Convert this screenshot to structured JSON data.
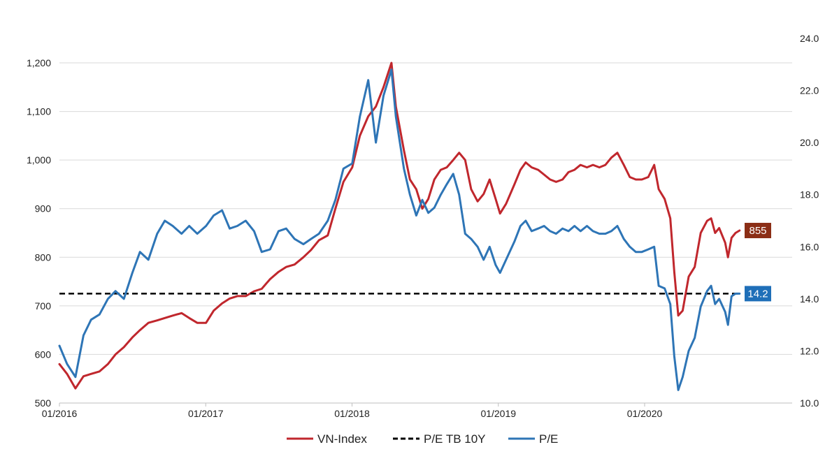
{
  "chart_data": {
    "type": "line",
    "x_ticks": [
      "01/2016",
      "01/2017",
      "01/2018",
      "01/2019",
      "01/2020"
    ],
    "y_left": {
      "lim": [
        500,
        1200
      ],
      "ticks": [
        "500",
        "600",
        "700",
        "800",
        "900",
        "1,000",
        "1,100",
        "1,200"
      ]
    },
    "y_right": {
      "lim": [
        10,
        24
      ],
      "ticks": [
        "10.0",
        "12.0",
        "14.0",
        "16.0",
        "18.0",
        "20.0",
        "22.0",
        "24.0"
      ]
    },
    "grid": "horizontal",
    "legend_position": "bottom",
    "series": [
      {
        "name": "VN-Index",
        "axis": "left",
        "color": "#c0272d",
        "points": [
          [
            "2016-01-01",
            580
          ],
          [
            "2016-01-20",
            560
          ],
          [
            "2016-02-10",
            530
          ],
          [
            "2016-03-01",
            555
          ],
          [
            "2016-03-20",
            560
          ],
          [
            "2016-04-10",
            565
          ],
          [
            "2016-05-01",
            580
          ],
          [
            "2016-05-20",
            600
          ],
          [
            "2016-06-10",
            615
          ],
          [
            "2016-07-01",
            635
          ],
          [
            "2016-07-20",
            650
          ],
          [
            "2016-08-10",
            665
          ],
          [
            "2016-09-01",
            670
          ],
          [
            "2016-09-20",
            675
          ],
          [
            "2016-10-10",
            680
          ],
          [
            "2016-11-01",
            685
          ],
          [
            "2016-11-20",
            675
          ],
          [
            "2016-12-10",
            665
          ],
          [
            "2017-01-01",
            665
          ],
          [
            "2017-01-20",
            690
          ],
          [
            "2017-02-10",
            705
          ],
          [
            "2017-03-01",
            715
          ],
          [
            "2017-03-20",
            720
          ],
          [
            "2017-04-10",
            720
          ],
          [
            "2017-05-01",
            730
          ],
          [
            "2017-05-20",
            735
          ],
          [
            "2017-06-10",
            755
          ],
          [
            "2017-07-01",
            770
          ],
          [
            "2017-07-20",
            780
          ],
          [
            "2017-08-10",
            785
          ],
          [
            "2017-09-01",
            800
          ],
          [
            "2017-09-20",
            815
          ],
          [
            "2017-10-10",
            835
          ],
          [
            "2017-11-01",
            845
          ],
          [
            "2017-11-20",
            900
          ],
          [
            "2017-12-10",
            955
          ],
          [
            "2018-01-01",
            985
          ],
          [
            "2018-01-20",
            1050
          ],
          [
            "2018-02-10",
            1090
          ],
          [
            "2018-03-01",
            1110
          ],
          [
            "2018-03-20",
            1150
          ],
          [
            "2018-04-09",
            1200
          ],
          [
            "2018-04-20",
            1110
          ],
          [
            "2018-05-10",
            1020
          ],
          [
            "2018-05-25",
            960
          ],
          [
            "2018-06-10",
            940
          ],
          [
            "2018-06-25",
            900
          ],
          [
            "2018-07-10",
            920
          ],
          [
            "2018-07-25",
            960
          ],
          [
            "2018-08-10",
            980
          ],
          [
            "2018-08-25",
            985
          ],
          [
            "2018-09-10",
            1000
          ],
          [
            "2018-09-25",
            1015
          ],
          [
            "2018-10-10",
            1000
          ],
          [
            "2018-10-25",
            940
          ],
          [
            "2018-11-10",
            915
          ],
          [
            "2018-11-25",
            930
          ],
          [
            "2018-12-10",
            960
          ],
          [
            "2018-12-25",
            920
          ],
          [
            "2019-01-05",
            890
          ],
          [
            "2019-01-20",
            910
          ],
          [
            "2019-02-10",
            950
          ],
          [
            "2019-02-25",
            980
          ],
          [
            "2019-03-10",
            995
          ],
          [
            "2019-03-25",
            985
          ],
          [
            "2019-04-10",
            980
          ],
          [
            "2019-04-25",
            970
          ],
          [
            "2019-05-10",
            960
          ],
          [
            "2019-05-25",
            955
          ],
          [
            "2019-06-10",
            960
          ],
          [
            "2019-06-25",
            975
          ],
          [
            "2019-07-10",
            980
          ],
          [
            "2019-07-25",
            990
          ],
          [
            "2019-08-10",
            985
          ],
          [
            "2019-08-25",
            990
          ],
          [
            "2019-09-10",
            985
          ],
          [
            "2019-09-25",
            990
          ],
          [
            "2019-10-10",
            1005
          ],
          [
            "2019-10-25",
            1015
          ],
          [
            "2019-11-10",
            990
          ],
          [
            "2019-11-25",
            965
          ],
          [
            "2019-12-10",
            960
          ],
          [
            "2019-12-25",
            960
          ],
          [
            "2020-01-10",
            965
          ],
          [
            "2020-01-25",
            990
          ],
          [
            "2020-02-05",
            940
          ],
          [
            "2020-02-20",
            920
          ],
          [
            "2020-03-05",
            880
          ],
          [
            "2020-03-15",
            770
          ],
          [
            "2020-03-25",
            680
          ],
          [
            "2020-04-05",
            690
          ],
          [
            "2020-04-20",
            760
          ],
          [
            "2020-05-05",
            780
          ],
          [
            "2020-05-20",
            850
          ],
          [
            "2020-06-05",
            875
          ],
          [
            "2020-06-15",
            880
          ],
          [
            "2020-06-25",
            850
          ],
          [
            "2020-07-05",
            860
          ],
          [
            "2020-07-20",
            830
          ],
          [
            "2020-07-27",
            800
          ],
          [
            "2020-08-05",
            840
          ],
          [
            "2020-08-15",
            850
          ],
          [
            "2020-08-25",
            855
          ]
        ]
      },
      {
        "name": "P/E TB 10Y",
        "axis": "right",
        "color": "#000000",
        "dashed": true,
        "value": 14.2
      },
      {
        "name": "P/E",
        "axis": "right",
        "color": "#2e75b6",
        "points": [
          [
            "2016-01-01",
            12.2
          ],
          [
            "2016-01-20",
            11.5
          ],
          [
            "2016-02-10",
            11.0
          ],
          [
            "2016-03-01",
            12.6
          ],
          [
            "2016-03-20",
            13.2
          ],
          [
            "2016-04-10",
            13.4
          ],
          [
            "2016-05-01",
            14.0
          ],
          [
            "2016-05-20",
            14.3
          ],
          [
            "2016-06-10",
            14.0
          ],
          [
            "2016-07-01",
            15.0
          ],
          [
            "2016-07-20",
            15.8
          ],
          [
            "2016-08-10",
            15.5
          ],
          [
            "2016-09-01",
            16.5
          ],
          [
            "2016-09-20",
            17.0
          ],
          [
            "2016-10-10",
            16.8
          ],
          [
            "2016-11-01",
            16.5
          ],
          [
            "2016-11-20",
            16.8
          ],
          [
            "2016-12-10",
            16.5
          ],
          [
            "2017-01-01",
            16.8
          ],
          [
            "2017-01-20",
            17.2
          ],
          [
            "2017-02-10",
            17.4
          ],
          [
            "2017-03-01",
            16.7
          ],
          [
            "2017-03-20",
            16.8
          ],
          [
            "2017-04-10",
            17.0
          ],
          [
            "2017-05-01",
            16.6
          ],
          [
            "2017-05-20",
            15.8
          ],
          [
            "2017-06-10",
            15.9
          ],
          [
            "2017-07-01",
            16.6
          ],
          [
            "2017-07-20",
            16.7
          ],
          [
            "2017-08-10",
            16.3
          ],
          [
            "2017-09-01",
            16.1
          ],
          [
            "2017-09-20",
            16.3
          ],
          [
            "2017-10-10",
            16.5
          ],
          [
            "2017-11-01",
            17.0
          ],
          [
            "2017-11-20",
            17.8
          ],
          [
            "2017-12-10",
            19.0
          ],
          [
            "2018-01-01",
            19.2
          ],
          [
            "2018-01-20",
            21.0
          ],
          [
            "2018-02-10",
            22.4
          ],
          [
            "2018-03-01",
            20.0
          ],
          [
            "2018-03-20",
            21.8
          ],
          [
            "2018-04-09",
            22.8
          ],
          [
            "2018-04-20",
            21.0
          ],
          [
            "2018-05-10",
            19.0
          ],
          [
            "2018-05-25",
            18.0
          ],
          [
            "2018-06-10",
            17.2
          ],
          [
            "2018-06-25",
            17.8
          ],
          [
            "2018-07-10",
            17.3
          ],
          [
            "2018-07-25",
            17.5
          ],
          [
            "2018-08-10",
            18.0
          ],
          [
            "2018-08-25",
            18.4
          ],
          [
            "2018-09-10",
            18.8
          ],
          [
            "2018-09-25",
            18.0
          ],
          [
            "2018-10-10",
            16.5
          ],
          [
            "2018-10-25",
            16.3
          ],
          [
            "2018-11-10",
            16.0
          ],
          [
            "2018-11-25",
            15.5
          ],
          [
            "2018-12-10",
            16.0
          ],
          [
            "2018-12-25",
            15.3
          ],
          [
            "2019-01-05",
            15.0
          ],
          [
            "2019-01-20",
            15.5
          ],
          [
            "2019-02-10",
            16.2
          ],
          [
            "2019-02-25",
            16.8
          ],
          [
            "2019-03-10",
            17.0
          ],
          [
            "2019-03-25",
            16.6
          ],
          [
            "2019-04-10",
            16.7
          ],
          [
            "2019-04-25",
            16.8
          ],
          [
            "2019-05-10",
            16.6
          ],
          [
            "2019-05-25",
            16.5
          ],
          [
            "2019-06-10",
            16.7
          ],
          [
            "2019-06-25",
            16.6
          ],
          [
            "2019-07-10",
            16.8
          ],
          [
            "2019-07-25",
            16.6
          ],
          [
            "2019-08-10",
            16.8
          ],
          [
            "2019-08-25",
            16.6
          ],
          [
            "2019-09-10",
            16.5
          ],
          [
            "2019-09-25",
            16.5
          ],
          [
            "2019-10-10",
            16.6
          ],
          [
            "2019-10-25",
            16.8
          ],
          [
            "2019-11-10",
            16.3
          ],
          [
            "2019-11-25",
            16.0
          ],
          [
            "2019-12-10",
            15.8
          ],
          [
            "2019-12-25",
            15.8
          ],
          [
            "2020-01-10",
            15.9
          ],
          [
            "2020-01-25",
            16.0
          ],
          [
            "2020-02-05",
            14.5
          ],
          [
            "2020-02-20",
            14.4
          ],
          [
            "2020-03-05",
            13.8
          ],
          [
            "2020-03-15",
            11.8
          ],
          [
            "2020-03-25",
            10.5
          ],
          [
            "2020-04-05",
            11.0
          ],
          [
            "2020-04-20",
            12.0
          ],
          [
            "2020-05-05",
            12.5
          ],
          [
            "2020-05-20",
            13.7
          ],
          [
            "2020-06-05",
            14.3
          ],
          [
            "2020-06-15",
            14.5
          ],
          [
            "2020-06-25",
            13.8
          ],
          [
            "2020-07-05",
            14.0
          ],
          [
            "2020-07-20",
            13.5
          ],
          [
            "2020-07-27",
            13.0
          ],
          [
            "2020-08-05",
            14.1
          ],
          [
            "2020-08-15",
            14.2
          ],
          [
            "2020-08-25",
            14.2
          ]
        ]
      }
    ],
    "end_labels": [
      {
        "series": "VN-Index",
        "text": "855",
        "value": 855,
        "axis": "left",
        "color": "#8b2e16"
      },
      {
        "series": "P/E",
        "text": "14.2",
        "value": 14.2,
        "axis": "right",
        "color": "#1f6fb8"
      }
    ]
  }
}
